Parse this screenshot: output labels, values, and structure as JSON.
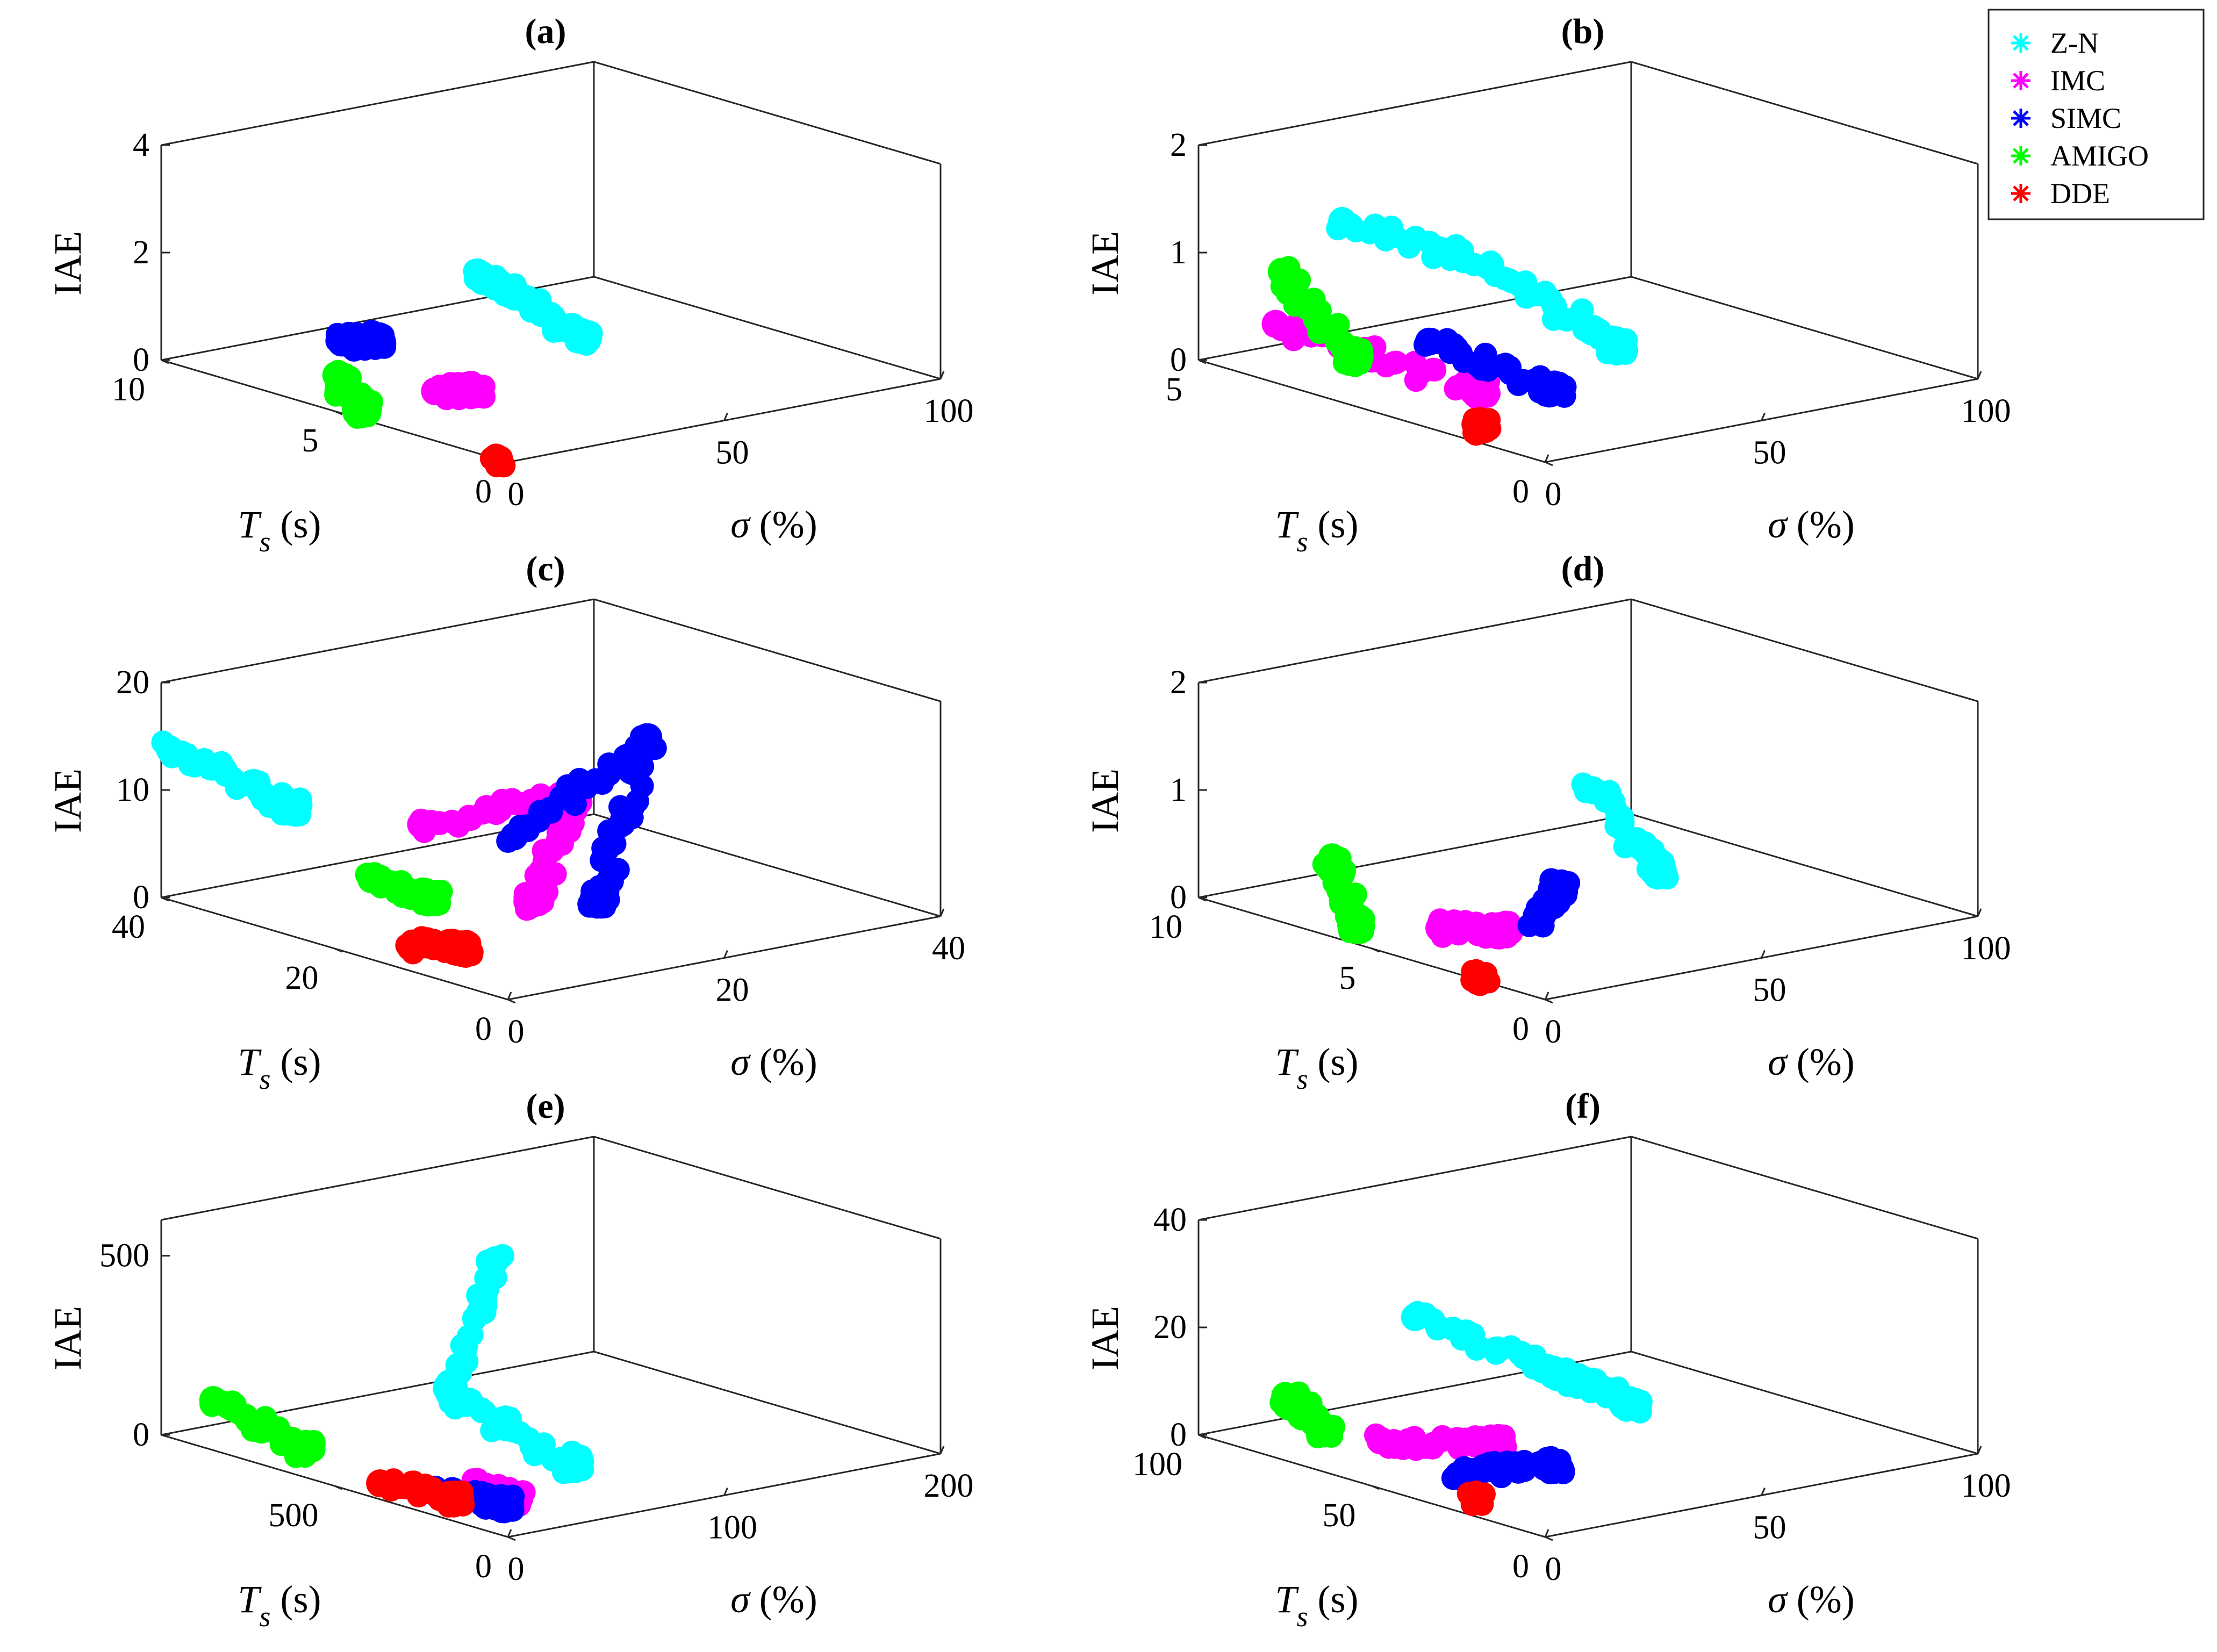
{
  "legend": {
    "placement": "top-right",
    "entries": [
      {
        "label": "Z-N",
        "color": "#00ffff"
      },
      {
        "label": "IMC",
        "color": "#ff00ff"
      },
      {
        "label": "SIMC",
        "color": "#0000ff"
      },
      {
        "label": "AMIGO",
        "color": "#00ff00"
      },
      {
        "label": "DDE",
        "color": "#ff0000"
      }
    ]
  },
  "chart_data": [
    {
      "type": "scatter",
      "title": "(a)",
      "xlabel": "σ (%)",
      "ylabel": "T",
      "ylabel_sub": "s",
      "ylabel_unit": "(s)",
      "zlabel": "IAE",
      "xlim": [
        0,
        100
      ],
      "ylim": [
        0,
        10
      ],
      "zlim": [
        0,
        4
      ],
      "xticks": [
        "0",
        "50",
        "100"
      ],
      "yticks": [
        "0",
        "5",
        "10"
      ],
      "zticks": [
        "0",
        "2",
        "4"
      ],
      "grid": false,
      "series": [
        {
          "name": "Z-N",
          "points": [
            [
              45,
              6.5,
              1.6
            ],
            [
              55,
              6.0,
              0.9
            ],
            [
              62,
              5.6,
              0.3
            ]
          ]
        },
        {
          "name": "IMC",
          "points": [
            [
              12,
              3.6,
              0.45
            ],
            [
              18,
              3.2,
              0.45
            ]
          ]
        },
        {
          "name": "SIMC",
          "points": [
            [
              8,
              5.8,
              1.0
            ],
            [
              13,
              5.4,
              1.05
            ]
          ]
        },
        {
          "name": "AMIGO",
          "points": [
            [
              2,
              5.2,
              0.6
            ],
            [
              5,
              4.8,
              0.0
            ]
          ]
        },
        {
          "name": "DDE",
          "points": [
            [
              0.5,
              0.4,
              0.0
            ]
          ]
        }
      ]
    },
    {
      "type": "scatter",
      "title": "(b)",
      "xlabel": "σ (%)",
      "ylabel": "T",
      "ylabel_sub": "s",
      "ylabel_unit": "(s)",
      "zlabel": "IAE",
      "xlim": [
        0,
        100
      ],
      "ylim": [
        0,
        5
      ],
      "zlim": [
        0,
        2
      ],
      "xticks": [
        "0",
        "50",
        "100"
      ],
      "yticks": [
        "0",
        "5"
      ],
      "zticks": [
        "0",
        "1",
        "2"
      ],
      "grid": false,
      "series": [
        {
          "name": "Z-N",
          "points": [
            [
              30,
              4.8,
              1.1
            ],
            [
              45,
              3.6,
              0.8
            ],
            [
              55,
              2.4,
              0.2
            ]
          ]
        },
        {
          "name": "IMC",
          "points": [
            [
              5,
              4.2,
              0.45
            ],
            [
              20,
              2.2,
              0.1
            ]
          ]
        },
        {
          "name": "SIMC",
          "points": [
            [
              18,
              2.8,
              0.45
            ],
            [
              28,
              1.6,
              0.15
            ]
          ]
        },
        {
          "name": "AMIGO",
          "points": [
            [
              0,
              3.8,
              1.05
            ],
            [
              10,
              3.4,
              0.25
            ]
          ]
        },
        {
          "name": "DDE",
          "points": [
            [
              8,
              1.4,
              0.0
            ]
          ]
        }
      ]
    },
    {
      "type": "scatter",
      "title": "(c)",
      "xlabel": "σ (%)",
      "ylabel": "T",
      "ylabel_sub": "s",
      "ylabel_unit": "(s)",
      "zlabel": "IAE",
      "xlim": [
        0,
        40
      ],
      "ylim": [
        0,
        40
      ],
      "zlim": [
        0,
        20
      ],
      "xticks": [
        "0",
        "20",
        "40"
      ],
      "yticks": [
        "0",
        "20",
        "40"
      ],
      "zticks": [
        "0",
        "10",
        "20"
      ],
      "grid": false,
      "series": [
        {
          "name": "Z-N",
          "points": [
            [
              0,
              39,
              14
            ],
            [
              4,
              30,
              10
            ]
          ]
        },
        {
          "name": "IMC",
          "points": [
            [
              8,
              20,
              10
            ],
            [
              18,
              15,
              12
            ],
            [
              12,
              12,
              4
            ]
          ]
        },
        {
          "name": "SIMC",
          "points": [
            [
              15,
              18,
              8
            ],
            [
              25,
              15,
              16
            ],
            [
              18,
              12,
              3
            ]
          ]
        },
        {
          "name": "AMIGO",
          "points": [
            [
              5,
              22,
              5
            ],
            [
              9,
              20,
              3
            ]
          ]
        },
        {
          "name": "DDE",
          "points": [
            [
              4,
              16,
              0.5
            ],
            [
              7,
              14,
              0.0
            ]
          ]
        }
      ]
    },
    {
      "type": "scatter",
      "title": "(d)",
      "xlabel": "σ (%)",
      "ylabel": "T",
      "ylabel_sub": "s",
      "ylabel_unit": "(s)",
      "zlabel": "IAE",
      "xlim": [
        0,
        100
      ],
      "ylim": [
        0,
        10
      ],
      "zlim": [
        0,
        2
      ],
      "xticks": [
        "0",
        "50",
        "100"
      ],
      "yticks": [
        "0",
        "5",
        "10"
      ],
      "zticks": [
        "0",
        "1",
        "2"
      ],
      "grid": false,
      "series": [
        {
          "name": "Z-N",
          "points": [
            [
              55,
              5.5,
              1.0
            ],
            [
              62,
              4.5,
              0.3
            ]
          ]
        },
        {
          "name": "IMC",
          "points": [
            [
              14,
              4.8,
              0.1
            ],
            [
              22,
              4.0,
              0.1
            ]
          ]
        },
        {
          "name": "SIMC",
          "points": [
            [
              32,
              4.2,
              0.1
            ],
            [
              40,
              4.6,
              0.3
            ]
          ]
        },
        {
          "name": "AMIGO",
          "points": [
            [
              2,
              6.4,
              0.7
            ],
            [
              4,
              6.0,
              0.1
            ]
          ]
        },
        {
          "name": "DDE",
          "points": [
            [
              1,
              2.0,
              0.0
            ]
          ]
        }
      ]
    },
    {
      "type": "scatter",
      "title": "(e)",
      "xlabel": "σ (%)",
      "ylabel": "T",
      "ylabel_sub": "s",
      "ylabel_unit": "(s)",
      "zlabel": "IAE",
      "xlim": [
        0,
        200
      ],
      "ylim": [
        0,
        1000
      ],
      "zlim": [
        0,
        600
      ],
      "xticks": [
        "0",
        "100",
        "200"
      ],
      "yticks": [
        "0",
        "500"
      ],
      "zticks": [
        "0",
        "500"
      ],
      "grid": false,
      "series": [
        {
          "name": "Z-N",
          "points": [
            [
              55,
              380,
              600
            ],
            [
              45,
              450,
              220
            ],
            [
              70,
              250,
              50
            ]
          ]
        },
        {
          "name": "IMC",
          "points": [
            [
              25,
              250,
              40
            ],
            [
              35,
              200,
              10
            ]
          ]
        },
        {
          "name": "SIMC",
          "points": [
            [
              15,
              300,
              20
            ],
            [
              30,
              200,
              0
            ]
          ]
        },
        {
          "name": "AMIGO",
          "points": [
            [
              0,
              850,
              140
            ],
            [
              10,
              650,
              50
            ]
          ]
        },
        {
          "name": "DDE",
          "points": [
            [
              5,
              400,
              30
            ],
            [
              20,
              280,
              0
            ]
          ]
        }
      ]
    },
    {
      "type": "scatter",
      "title": "(f)",
      "xlabel": "σ (%)",
      "ylabel": "T",
      "ylabel_sub": "s",
      "ylabel_unit": "(s)",
      "zlabel": "IAE",
      "xlim": [
        0,
        100
      ],
      "ylim": [
        0,
        100
      ],
      "zlim": [
        0,
        40
      ],
      "xticks": [
        "0",
        "50",
        "100"
      ],
      "yticks": [
        "0",
        "50",
        "100"
      ],
      "zticks": [
        "0",
        "20",
        "40"
      ],
      "grid": false,
      "series": [
        {
          "name": "Z-N",
          "points": [
            [
              30,
              75,
              22
            ],
            [
              50,
              60,
              12
            ],
            [
              60,
              50,
              6
            ]
          ]
        },
        {
          "name": "IMC",
          "points": [
            [
              10,
              60,
              5
            ],
            [
              25,
              45,
              5
            ]
          ]
        },
        {
          "name": "SIMC",
          "points": [
            [
              12,
              40,
              2
            ],
            [
              30,
              35,
              2
            ]
          ]
        },
        {
          "name": "AMIGO",
          "points": [
            [
              0,
              75,
              12
            ],
            [
              5,
              70,
              6
            ]
          ]
        },
        {
          "name": "DDE",
          "points": [
            [
              8,
              30,
              0
            ]
          ]
        }
      ]
    }
  ]
}
